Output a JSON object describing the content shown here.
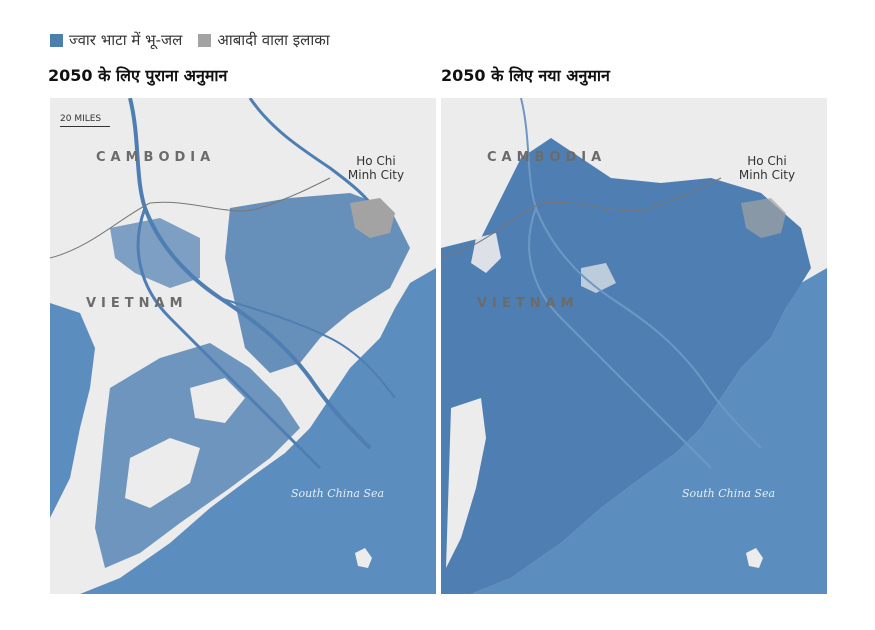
{
  "legend": {
    "items": [
      {
        "label": "ज्वार भाटा में भू-जल",
        "color": "#4d7fad"
      },
      {
        "label": "आबादी वाला इलाका",
        "color": "#a3a3a3"
      }
    ]
  },
  "colors": {
    "water": "#5b8dbf",
    "flood": "#4f7fb2",
    "land": "#ececec",
    "urban": "#a3a3a3"
  },
  "panels": [
    {
      "title": "2050 के लिए पुराना अनुमान",
      "scale": "20 MILES",
      "country1": "CAMBODIA",
      "country2": "VIETNAM",
      "city_line1": "Ho Chi",
      "city_line2": "Minh City",
      "sea": "South China Sea"
    },
    {
      "title": "2050 के लिए नया अनुमान",
      "country1": "CAMBODIA",
      "country2": "VIETNAM",
      "city_line1": "Ho Chi",
      "city_line2": "Minh City",
      "sea": "South China Sea"
    }
  ]
}
